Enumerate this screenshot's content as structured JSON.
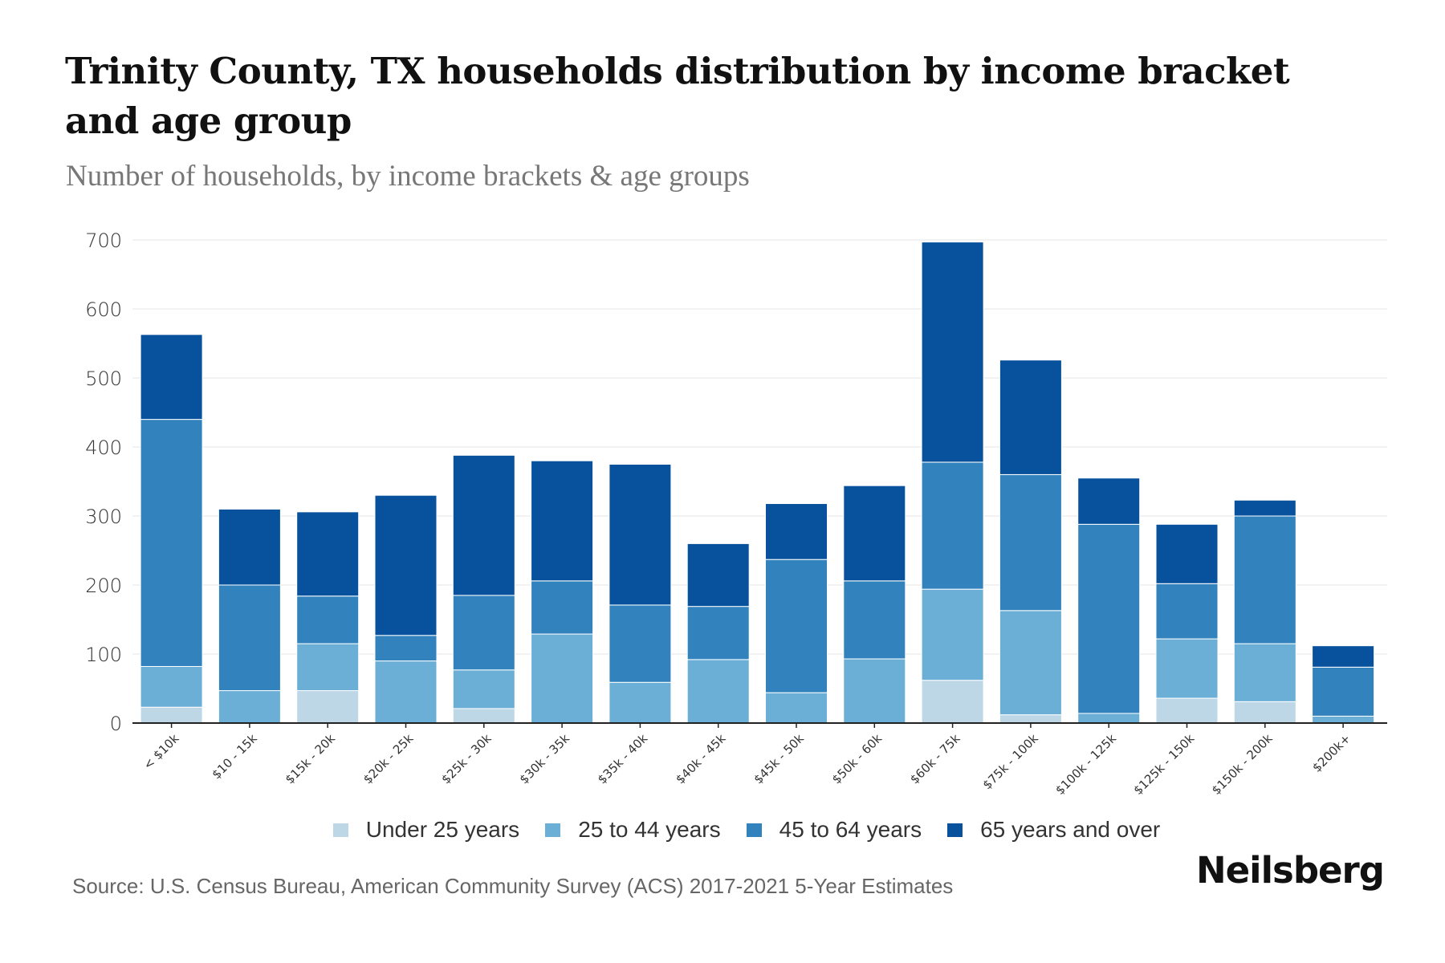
{
  "header": {
    "title": "Trinity County, TX households distribution by income bracket and age group",
    "subtitle": "Number of households, by income brackets & age groups"
  },
  "footer": {
    "source": "Source: U.S. Census Bureau, American Community Survey (ACS) 2017-2021 5-Year Estimates",
    "logo": "Neilsberg"
  },
  "legend": [
    {
      "label": "Under 25 years",
      "color": "#bdd7e7"
    },
    {
      "label": "25 to 44 years",
      "color": "#6baed6"
    },
    {
      "label": "45 to 64 years",
      "color": "#3182bd"
    },
    {
      "label": "65 years and over",
      "color": "#08519c"
    }
  ],
  "chart_data": {
    "type": "bar",
    "stacked": true,
    "title": "Trinity County, TX households distribution by income bracket and age group",
    "subtitle": "Number of households, by income brackets & age groups",
    "xlabel": "",
    "ylabel": "",
    "ylim": [
      0,
      700
    ],
    "yticks": [
      0,
      100,
      200,
      300,
      400,
      500,
      600,
      700
    ],
    "grid": true,
    "legend_position": "bottom",
    "categories": [
      "< $10k",
      "$10 - 15k",
      "$15k - 20k",
      "$20k - 25k",
      "$25k - 30k",
      "$30k - 35k",
      "$35k - 40k",
      "$40k - 45k",
      "$45k - 50k",
      "$50k - 60k",
      "$60k - 75k",
      "$75k - 100k",
      "$100k - 125k",
      "$125k - 150k",
      "$150k - 200k",
      "$200k+"
    ],
    "series": [
      {
        "name": "Under 25 years",
        "color": "#bdd7e7",
        "values": [
          23,
          0,
          47,
          0,
          21,
          0,
          0,
          0,
          0,
          0,
          62,
          12,
          0,
          36,
          31,
          0
        ]
      },
      {
        "name": "25 to 44 years",
        "color": "#6baed6",
        "values": [
          59,
          47,
          68,
          90,
          56,
          129,
          59,
          92,
          44,
          93,
          132,
          151,
          14,
          86,
          84,
          10
        ]
      },
      {
        "name": "45 to 64 years",
        "color": "#3182bd",
        "values": [
          358,
          153,
          69,
          37,
          108,
          77,
          112,
          77,
          193,
          113,
          184,
          197,
          274,
          80,
          185,
          71
        ]
      },
      {
        "name": "65 years and over",
        "color": "#08519c",
        "values": [
          123,
          110,
          122,
          203,
          203,
          174,
          204,
          91,
          81,
          138,
          319,
          166,
          67,
          86,
          23,
          31
        ]
      }
    ]
  }
}
